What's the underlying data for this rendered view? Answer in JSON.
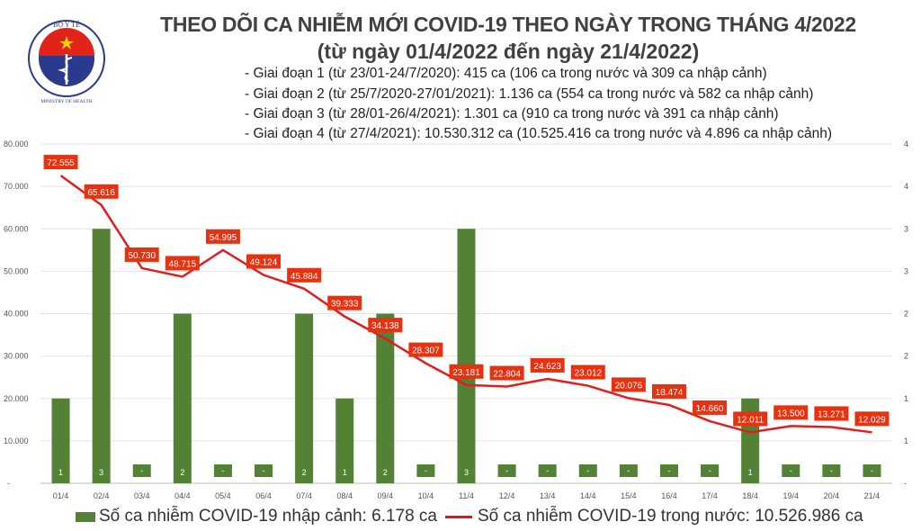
{
  "logo": {
    "top_text": "BỘ Y TẾ",
    "bottom_text": "MINISTRY OF HEALTH"
  },
  "header": {
    "title": "THEO DÕI CA NHIỄM MỚI COVID-19 THEO NGÀY TRONG THÁNG 4/2022",
    "subtitle": "(từ ngày 01/4/2022 đến ngày 21/4/2022)",
    "phases": [
      "- Giai đoạn 1 (từ 23/01-24/7/2020): 415 ca (106 ca trong nước và 309 ca nhập cảnh)",
      "- Giai đoạn 2 (từ 25/7/2020-27/01/2021): 1.136 ca (554 ca trong nước và 582 ca nhập cảnh)",
      "- Giai đoạn 3 (từ 28/01-26/4/2021): 1.301 ca (910 ca trong nước và 391 ca nhập cảnh)",
      "- Giai đoạn 4 (từ 27/4/2021): 10.530.312 ca (10.525.416 ca trong nước và 4.896 ca nhập cảnh)"
    ]
  },
  "chart_data": {
    "type": "bar+line",
    "categories": [
      "01/4",
      "02/4",
      "03/4",
      "04/4",
      "05/4",
      "06/4",
      "07/4",
      "08/4",
      "09/4",
      "10/4",
      "11/4",
      "12/4",
      "13/4",
      "14/4",
      "15/4",
      "16/4",
      "17/4",
      "18/4",
      "19/4",
      "20/4",
      "21/4"
    ],
    "left_axis": {
      "ylim": [
        0,
        80000
      ],
      "ticks": [
        "-",
        "10.000",
        "20.000",
        "30.000",
        "40.000",
        "50.000",
        "60.000",
        "70.000",
        "80.000"
      ]
    },
    "right_axis": {
      "ylim": [
        0,
        4
      ],
      "ticks": [
        "-",
        "1",
        "1",
        "2",
        "2",
        "3",
        "3",
        "4",
        "4"
      ]
    },
    "grid": true,
    "legend_position": "bottom",
    "series": [
      {
        "name": "Số ca nhiễm COVID-19 nhập cảnh: 6.178 ca",
        "type": "bar",
        "axis": "right",
        "color": "#538135",
        "values": [
          1,
          3,
          0,
          2,
          0,
          0,
          2,
          1,
          2,
          0,
          3,
          0,
          0,
          0,
          0,
          0,
          0,
          1,
          0,
          0,
          0
        ],
        "labels": [
          "1",
          "3",
          "-",
          "2",
          "-",
          "-",
          "2",
          "1",
          "2",
          "-",
          "3",
          "-",
          "-",
          "-",
          "-",
          "-",
          "-",
          "1",
          "-",
          "-",
          "-"
        ]
      },
      {
        "name": "Số ca nhiễm COVID-19 trong nước: 10.526.986 ca",
        "type": "line",
        "axis": "left",
        "color": "#e11d1d",
        "values": [
          72555,
          65616,
          50730,
          48715,
          54995,
          49124,
          45884,
          39333,
          34138,
          28307,
          23181,
          22804,
          24623,
          23012,
          20076,
          18474,
          14660,
          12011,
          13500,
          13271,
          12029
        ],
        "labels": [
          "72.555",
          "65.616",
          "50.730",
          "48.715",
          "54.995",
          "49.124",
          "45.884",
          "39.333",
          "34.138",
          "28.307",
          "23.181",
          "22.804",
          "24.623",
          "23.012",
          "20.076",
          "18.474",
          "14.660",
          "12.011",
          "13.500",
          "13.271",
          "12.029"
        ]
      }
    ]
  }
}
